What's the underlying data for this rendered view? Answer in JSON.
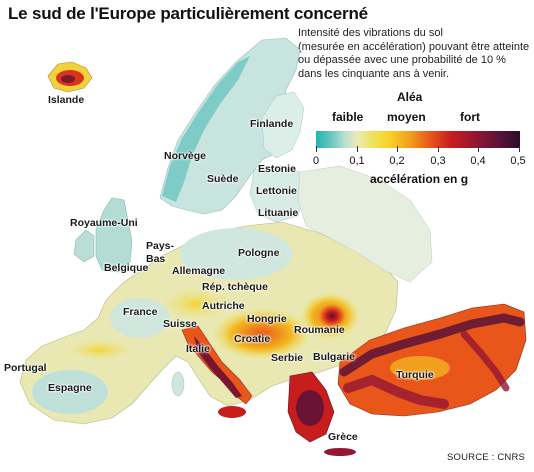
{
  "title": "Le sud de l'Europe particulièrement concerné",
  "description": [
    "Intensité des vibrations du sol",
    "(mesurée en accélération) pouvant être atteinte",
    "ou dépassée avec une probabilité de 10 %",
    "dans les cinquante ans à venir."
  ],
  "legend": {
    "title": "Aléa",
    "categories": [
      "faible",
      "moyen",
      "fort"
    ],
    "ticks": [
      "0",
      "0,1",
      "0,2",
      "0,3",
      "0,4",
      "0,5"
    ],
    "unit": "accélération en g",
    "range": [
      0,
      0.5
    ],
    "color_ramp": [
      "#22b3b0",
      "#b9ded0",
      "#f1e25a",
      "#f29e1c",
      "#e9561a",
      "#c81d1d",
      "#5a1238",
      "#2a0d2a"
    ]
  },
  "countries": [
    "Islande",
    "Norvège",
    "Suède",
    "Finlande",
    "Estonie",
    "Lettonie",
    "Lituanie",
    "Royaume-Uni",
    "Pays-Bas",
    "Belgique",
    "Allemagne",
    "Pologne",
    "Rép. tchèque",
    "France",
    "Autriche",
    "Suisse",
    "Hongrie",
    "Roumanie",
    "Croatie",
    "Italie",
    "Serbie",
    "Bulgarie",
    "Portugal",
    "Espagne",
    "Turquie",
    "Grèce"
  ],
  "source": "SOURCE : CNRS",
  "colors": {
    "sea": "#ffffff",
    "land_low": "#c6e3dd",
    "land_mid": "#f2e05b",
    "land_high": "#d9241c",
    "land_very_high": "#4a1034"
  }
}
